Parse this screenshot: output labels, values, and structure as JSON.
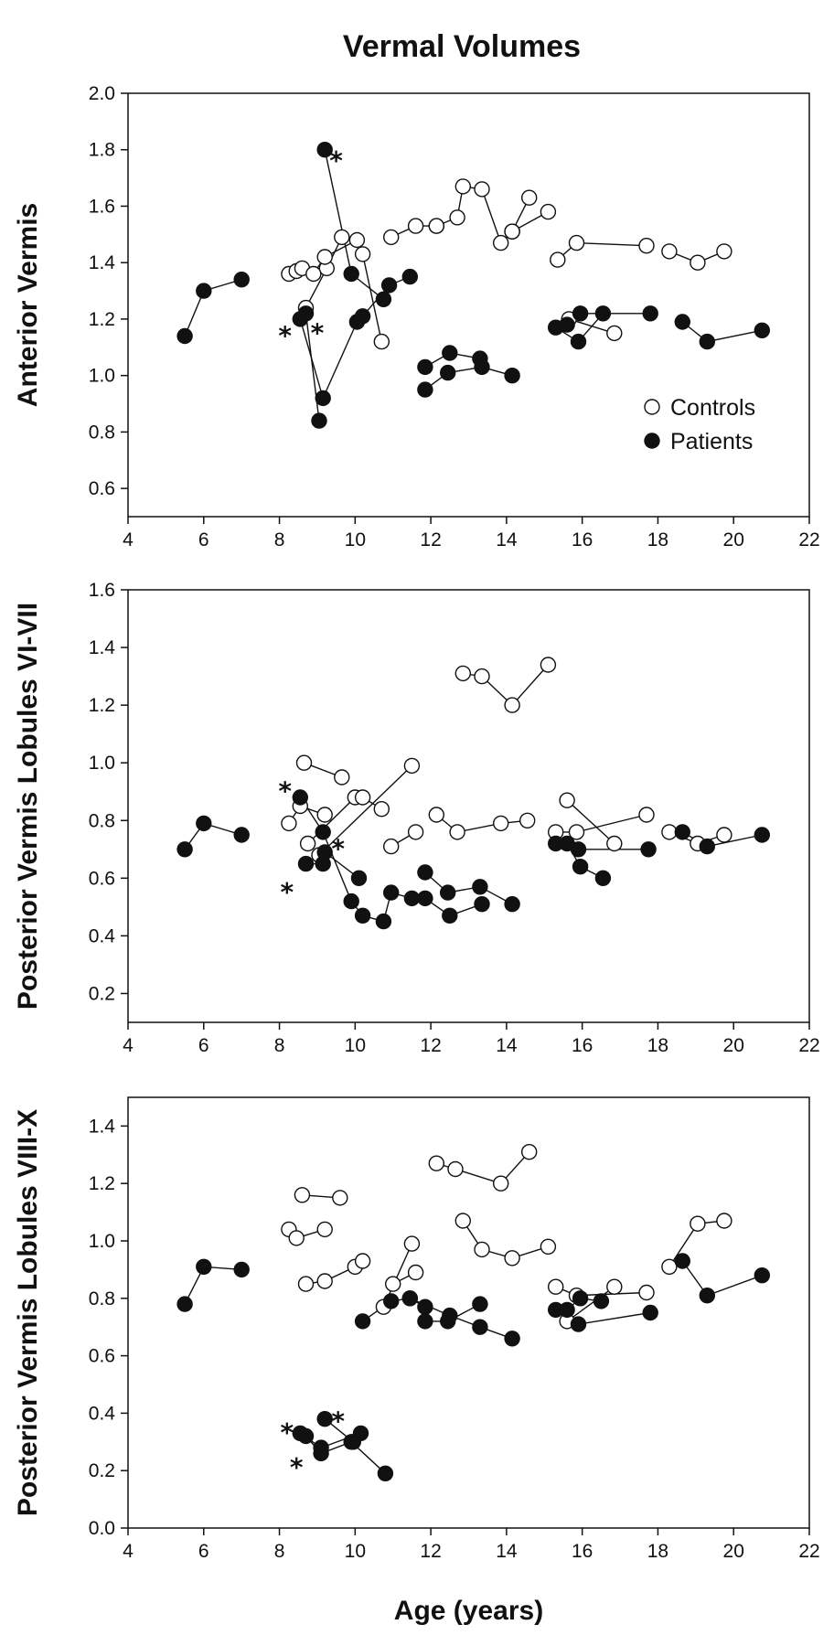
{
  "title": "Vermal Volumes",
  "xlabel": "Age (years)",
  "chart_data": [
    {
      "type": "scatter",
      "ylabel": "Anterior Vermis",
      "xlim": [
        4,
        22
      ],
      "ylim": [
        0.5,
        2.0
      ],
      "xticks": [
        4,
        6,
        8,
        10,
        12,
        14,
        16,
        18,
        20,
        22
      ],
      "yticks": [
        0.6,
        0.8,
        1.0,
        1.2,
        1.4,
        1.6,
        1.8,
        2.0
      ],
      "ytick_labels": [
        "0.6",
        "0.8",
        "1.0",
        "1.2",
        "1.4",
        "1.6",
        "1.8",
        "2.0"
      ],
      "legend": {
        "position": "bottom-right",
        "items": [
          {
            "label": "Controls",
            "marker": "open"
          },
          {
            "label": "Patients",
            "marker": "filled"
          }
        ]
      },
      "series": [
        {
          "name": "Controls",
          "marker": "open",
          "subjects": [
            [
              [
                8.25,
                1.36
              ],
              [
                8.45,
                1.37
              ],
              [
                8.6,
                1.38
              ]
            ],
            [
              [
                8.7,
                1.24
              ],
              [
                9.25,
                1.38
              ],
              [
                9.65,
                1.49
              ]
            ],
            [
              [
                8.9,
                1.36
              ],
              [
                9.2,
                1.42
              ],
              [
                10.05,
                1.48
              ]
            ],
            [
              [
                10.95,
                1.49
              ],
              [
                11.6,
                1.53
              ],
              [
                12.15,
                1.53
              ]
            ],
            [
              [
                12.15,
                1.53
              ],
              [
                12.7,
                1.56
              ],
              [
                12.85,
                1.67
              ],
              [
                13.35,
                1.66
              ],
              [
                13.85,
                1.47
              ],
              [
                14.15,
                1.51
              ]
            ],
            [
              [
                14.15,
                1.51
              ],
              [
                14.6,
                1.63
              ]
            ],
            [
              [
                14.15,
                1.51
              ],
              [
                15.1,
                1.58
              ]
            ],
            [
              [
                10.7,
                1.12
              ],
              [
                10.2,
                1.43
              ]
            ],
            [
              [
                15.35,
                1.41
              ],
              [
                15.85,
                1.47
              ],
              [
                17.7,
                1.46
              ]
            ],
            [
              [
                15.65,
                1.2
              ],
              [
                16.85,
                1.15
              ]
            ],
            [
              [
                18.3,
                1.44
              ],
              [
                19.05,
                1.4
              ],
              [
                19.75,
                1.44
              ]
            ]
          ]
        },
        {
          "name": "Patients",
          "marker": "filled",
          "subjects": [
            [
              [
                5.5,
                1.14
              ],
              [
                6.0,
                1.3
              ],
              [
                7.0,
                1.34
              ]
            ],
            [
              [
                9.2,
                1.8
              ],
              [
                9.9,
                1.36
              ],
              [
                10.75,
                1.27
              ]
            ],
            [
              [
                8.55,
                1.2
              ],
              [
                9.15,
                0.92
              ],
              [
                10.05,
                1.19
              ],
              [
                10.2,
                1.21
              ],
              [
                10.9,
                1.32
              ],
              [
                11.45,
                1.35
              ]
            ],
            [
              [
                8.7,
                1.22
              ],
              [
                9.05,
                0.84
              ]
            ],
            [
              [
                11.85,
                1.03
              ],
              [
                12.5,
                1.08
              ],
              [
                13.3,
                1.06
              ]
            ],
            [
              [
                11.85,
                0.95
              ],
              [
                12.45,
                1.01
              ],
              [
                13.35,
                1.03
              ],
              [
                14.15,
                1.0
              ]
            ],
            [
              [
                15.3,
                1.17
              ],
              [
                15.9,
                1.12
              ],
              [
                16.55,
                1.22
              ]
            ],
            [
              [
                15.6,
                1.18
              ],
              [
                15.95,
                1.22
              ],
              [
                17.8,
                1.22
              ]
            ],
            [
              [
                18.65,
                1.19
              ],
              [
                19.3,
                1.12
              ],
              [
                20.75,
                1.16
              ]
            ]
          ]
        }
      ],
      "annotations": [
        {
          "text": "*",
          "x": 9.5,
          "y": 1.77
        },
        {
          "text": "*",
          "x": 8.15,
          "y": 1.15
        },
        {
          "text": "*",
          "x": 9.0,
          "y": 1.16
        }
      ]
    },
    {
      "type": "scatter",
      "ylabel": "Posterior Vermis Lobules VI-VII",
      "xlim": [
        4,
        22
      ],
      "ylim": [
        0.1,
        1.6
      ],
      "xticks": [
        4,
        6,
        8,
        10,
        12,
        14,
        16,
        18,
        20,
        22
      ],
      "yticks": [
        0.2,
        0.4,
        0.6,
        0.8,
        1.0,
        1.2,
        1.4,
        1.6
      ],
      "ytick_labels": [
        "0.2",
        "0.4",
        "0.6",
        "0.8",
        "1.0",
        "1.2",
        "1.4",
        "1.6"
      ],
      "series": [
        {
          "name": "Controls",
          "marker": "open",
          "subjects": [
            [
              [
                12.85,
                1.31
              ],
              [
                13.35,
                1.3
              ],
              [
                14.15,
                1.2
              ],
              [
                15.1,
                1.34
              ]
            ],
            [
              [
                8.65,
                1.0
              ],
              [
                9.65,
                0.95
              ]
            ],
            [
              [
                8.25,
                0.79
              ],
              [
                8.55,
                0.85
              ],
              [
                9.2,
                0.82
              ]
            ],
            [
              [
                8.75,
                0.72
              ],
              [
                10.0,
                0.88
              ],
              [
                10.2,
                0.88
              ],
              [
                10.7,
                0.84
              ]
            ],
            [
              [
                9.05,
                0.68
              ],
              [
                11.5,
                0.99
              ]
            ],
            [
              [
                10.95,
                0.71
              ],
              [
                11.6,
                0.76
              ]
            ],
            [
              [
                12.15,
                0.82
              ],
              [
                12.7,
                0.76
              ],
              [
                13.85,
                0.79
              ],
              [
                14.55,
                0.8
              ]
            ],
            [
              [
                15.3,
                0.76
              ],
              [
                15.85,
                0.76
              ],
              [
                17.7,
                0.82
              ]
            ],
            [
              [
                15.6,
                0.87
              ],
              [
                16.85,
                0.72
              ]
            ],
            [
              [
                18.3,
                0.76
              ],
              [
                19.05,
                0.72
              ],
              [
                19.75,
                0.75
              ]
            ]
          ]
        },
        {
          "name": "Patients",
          "marker": "filled",
          "subjects": [
            [
              [
                5.5,
                0.7
              ],
              [
                6.0,
                0.79
              ],
              [
                7.0,
                0.75
              ]
            ],
            [
              [
                8.55,
                0.88
              ],
              [
                9.15,
                0.76
              ],
              [
                9.9,
                0.52
              ],
              [
                10.2,
                0.47
              ],
              [
                10.75,
                0.45
              ],
              [
                10.95,
                0.55
              ],
              [
                11.5,
                0.53
              ]
            ],
            [
              [
                8.7,
                0.65
              ],
              [
                9.15,
                0.65
              ],
              [
                9.2,
                0.69
              ],
              [
                10.1,
                0.6
              ]
            ],
            [
              [
                11.85,
                0.53
              ],
              [
                12.5,
                0.47
              ],
              [
                13.35,
                0.51
              ]
            ],
            [
              [
                11.85,
                0.62
              ],
              [
                12.45,
                0.55
              ],
              [
                13.3,
                0.57
              ],
              [
                14.15,
                0.51
              ]
            ],
            [
              [
                15.3,
                0.72
              ],
              [
                15.9,
                0.7
              ],
              [
                17.75,
                0.7
              ]
            ],
            [
              [
                15.6,
                0.72
              ],
              [
                15.95,
                0.64
              ],
              [
                16.55,
                0.6
              ]
            ],
            [
              [
                18.65,
                0.76
              ],
              [
                19.3,
                0.71
              ],
              [
                20.75,
                0.75
              ]
            ]
          ]
        }
      ],
      "annotations": [
        {
          "text": "*",
          "x": 8.15,
          "y": 0.91
        },
        {
          "text": "*",
          "x": 9.55,
          "y": 0.71
        },
        {
          "text": "*",
          "x": 8.2,
          "y": 0.56
        }
      ]
    },
    {
      "type": "scatter",
      "ylabel": "Posterior Vermis Lobules VIII-X",
      "xlim": [
        4,
        22
      ],
      "ylim": [
        0.0,
        1.5
      ],
      "xticks": [
        4,
        6,
        8,
        10,
        12,
        14,
        16,
        18,
        20,
        22
      ],
      "yticks": [
        0.0,
        0.2,
        0.4,
        0.6,
        0.8,
        1.0,
        1.2,
        1.4
      ],
      "ytick_labels": [
        "0.0",
        "0.2",
        "0.4",
        "0.6",
        "0.8",
        "1.0",
        "1.2",
        "1.4"
      ],
      "series": [
        {
          "name": "Controls",
          "marker": "open",
          "subjects": [
            [
              [
                12.15,
                1.27
              ],
              [
                12.65,
                1.25
              ],
              [
                13.85,
                1.2
              ],
              [
                14.6,
                1.31
              ]
            ],
            [
              [
                8.6,
                1.16
              ],
              [
                9.6,
                1.15
              ]
            ],
            [
              [
                8.25,
                1.04
              ],
              [
                8.45,
                1.01
              ],
              [
                9.2,
                1.04
              ]
            ],
            [
              [
                12.85,
                1.07
              ],
              [
                13.35,
                0.97
              ],
              [
                14.15,
                0.94
              ],
              [
                15.1,
                0.98
              ]
            ],
            [
              [
                8.7,
                0.85
              ],
              [
                9.2,
                0.86
              ],
              [
                10.0,
                0.91
              ],
              [
                10.2,
                0.93
              ]
            ],
            [
              [
                10.75,
                0.77
              ],
              [
                11.5,
                0.99
              ]
            ],
            [
              [
                11.0,
                0.85
              ],
              [
                11.6,
                0.89
              ]
            ],
            [
              [
                15.3,
                0.84
              ],
              [
                15.85,
                0.81
              ],
              [
                17.7,
                0.82
              ]
            ],
            [
              [
                15.6,
                0.72
              ],
              [
                16.85,
                0.84
              ]
            ],
            [
              [
                18.3,
                0.91
              ],
              [
                19.05,
                1.06
              ],
              [
                19.75,
                1.07
              ]
            ]
          ]
        },
        {
          "name": "Patients",
          "marker": "filled",
          "subjects": [
            [
              [
                5.5,
                0.78
              ],
              [
                6.0,
                0.91
              ],
              [
                7.0,
                0.9
              ]
            ],
            [
              [
                10.2,
                0.72
              ],
              [
                10.95,
                0.79
              ],
              [
                11.45,
                0.8
              ],
              [
                11.85,
                0.77
              ]
            ],
            [
              [
                11.85,
                0.72
              ],
              [
                12.45,
                0.72
              ],
              [
                13.3,
                0.78
              ]
            ],
            [
              [
                11.45,
                0.8
              ],
              [
                12.5,
                0.74
              ],
              [
                13.3,
                0.7
              ],
              [
                14.15,
                0.66
              ]
            ],
            [
              [
                15.3,
                0.76
              ],
              [
                15.9,
                0.71
              ],
              [
                17.8,
                0.75
              ]
            ],
            [
              [
                15.6,
                0.76
              ],
              [
                15.95,
                0.8
              ],
              [
                16.5,
                0.79
              ]
            ],
            [
              [
                18.65,
                0.93
              ],
              [
                19.3,
                0.81
              ],
              [
                20.75,
                0.88
              ]
            ],
            [
              [
                8.55,
                0.33
              ],
              [
                9.1,
                0.28
              ],
              [
                10.15,
                0.33
              ]
            ],
            [
              [
                8.7,
                0.32
              ],
              [
                9.1,
                0.26
              ],
              [
                9.9,
                0.3
              ],
              [
                10.8,
                0.19
              ]
            ],
            [
              [
                9.2,
                0.38
              ],
              [
                9.95,
                0.3
              ]
            ]
          ]
        }
      ],
      "annotations": [
        {
          "text": "*",
          "x": 8.2,
          "y": 0.34
        },
        {
          "text": "*",
          "x": 9.55,
          "y": 0.38
        },
        {
          "text": "*",
          "x": 8.45,
          "y": 0.22
        }
      ]
    }
  ]
}
